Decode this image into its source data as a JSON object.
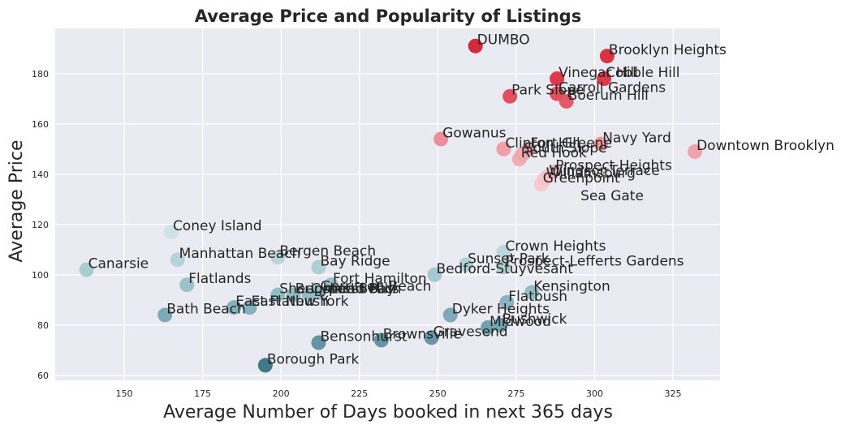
{
  "chart_data": {
    "type": "scatter",
    "title": "Average Price and Popularity of Listings",
    "xlabel": "Average Number of Days booked in next 365 days",
    "ylabel": "Average Price",
    "xlim": [
      128,
      340
    ],
    "ylim": [
      58,
      198
    ],
    "xticks": [
      150,
      175,
      200,
      225,
      250,
      275,
      300,
      325
    ],
    "yticks": [
      60,
      80,
      100,
      120,
      140,
      160,
      180
    ],
    "grid": true,
    "background": "#eaeaf2",
    "points": [
      {
        "label": "DUMBO",
        "x": 262,
        "y": 191,
        "color": "#d42a3e"
      },
      {
        "label": "Brooklyn Heights",
        "x": 304,
        "y": 187,
        "color": "#d83243"
      },
      {
        "label": "Vinegar Hill",
        "x": 288,
        "y": 178,
        "color": "#dc3a4b"
      },
      {
        "label": "Cobble Hill",
        "x": 303,
        "y": 178,
        "color": "#dc3a4b"
      },
      {
        "label": "Park Slope",
        "x": 273,
        "y": 171,
        "color": "#e1505f"
      },
      {
        "label": "Carroll Gardens",
        "x": 288,
        "y": 172,
        "color": "#e1505f"
      },
      {
        "label": "Boerum Hill",
        "x": 291,
        "y": 169,
        "color": "#e35a68"
      },
      {
        "label": "Gowanus",
        "x": 251,
        "y": 154,
        "color": "#ec8f98"
      },
      {
        "label": "Clinton Hill",
        "x": 271,
        "y": 150,
        "color": "#efa0a8"
      },
      {
        "label": "Fort Greene",
        "x": 279,
        "y": 150,
        "color": "#efa0a8"
      },
      {
        "label": "Navy Yard",
        "x": 302,
        "y": 152,
        "color": "#ee99a1"
      },
      {
        "label": "Downtown Brooklyn",
        "x": 332,
        "y": 149,
        "color": "#efa3aa"
      },
      {
        "label": "South Slope",
        "x": 277,
        "y": 148,
        "color": "#f0a7ae"
      },
      {
        "label": "Red Hook",
        "x": 276,
        "y": 146,
        "color": "#f1adb4"
      },
      {
        "label": "Prospect Heights",
        "x": 287,
        "y": 141,
        "color": "#f4bcc1"
      },
      {
        "label": "Windsor Terrace",
        "x": 285,
        "y": 139,
        "color": "#f4c2c7"
      },
      {
        "label": "Williamsburg",
        "x": 284,
        "y": 138,
        "color": "#f5c7cb"
      },
      {
        "label": "Greenpoint",
        "x": 283,
        "y": 136,
        "color": "#f6ccd0"
      },
      {
        "label": "Sea Gate",
        "x": 295,
        "y": 129,
        "color": "#ececec"
      },
      {
        "label": "Coney Island",
        "x": 165,
        "y": 117,
        "color": "#cfe2e5"
      },
      {
        "label": "Crown Heights",
        "x": 271,
        "y": 109,
        "color": "#bcd8dc"
      },
      {
        "label": "Manhattan Beach",
        "x": 167,
        "y": 106,
        "color": "#b5d3d8"
      },
      {
        "label": "Bergen Beach",
        "x": 199,
        "y": 107,
        "color": "#b8d5d9"
      },
      {
        "label": "Sunset Park",
        "x": 259,
        "y": 104,
        "color": "#b0d0d5"
      },
      {
        "label": "Bay Ridge",
        "x": 212,
        "y": 103,
        "color": "#aecfd4"
      },
      {
        "label": "Prospect-Lefferts Gardens",
        "x": 271,
        "y": 103,
        "color": "#aecfd4"
      },
      {
        "label": "Canarsie",
        "x": 138,
        "y": 102,
        "color": "#abcdd2"
      },
      {
        "label": "Bedford-Stuyvesant",
        "x": 249,
        "y": 100,
        "color": "#a6c9cf"
      },
      {
        "label": "Fort Hamilton",
        "x": 216,
        "y": 96,
        "color": "#9cc2c9"
      },
      {
        "label": "Flatlands",
        "x": 170,
        "y": 96,
        "color": "#9cc2c9"
      },
      {
        "label": "Kensington",
        "x": 280,
        "y": 93,
        "color": "#95bdc5"
      },
      {
        "label": "Sheepshead Bay",
        "x": 199,
        "y": 92,
        "color": "#93bbc3"
      },
      {
        "label": "Cypress Hills",
        "x": 209,
        "y": 92,
        "color": "#93bbc3"
      },
      {
        "label": "Brighton Beach",
        "x": 204,
        "y": 92,
        "color": "#93bbc3"
      },
      {
        "label": "Gerritsen Beach",
        "x": 212,
        "y": 93,
        "color": "#95bdc5"
      },
      {
        "label": "Flatbush",
        "x": 272,
        "y": 89,
        "color": "#8bb5be"
      },
      {
        "label": "East Flatbush",
        "x": 185,
        "y": 87,
        "color": "#86b1bb"
      },
      {
        "label": "East New York",
        "x": 190,
        "y": 87,
        "color": "#86b1bb"
      },
      {
        "label": "Bath Beach",
        "x": 163,
        "y": 84,
        "color": "#7faab5"
      },
      {
        "label": "Dyker Heights",
        "x": 254,
        "y": 84,
        "color": "#7faab5"
      },
      {
        "label": "Bushwick",
        "x": 270,
        "y": 80,
        "color": "#75a2ae"
      },
      {
        "label": "Midwood",
        "x": 266,
        "y": 79,
        "color": "#72a0ac"
      },
      {
        "label": "Gravesend",
        "x": 248,
        "y": 75,
        "color": "#6898a5"
      },
      {
        "label": "Brownsville",
        "x": 232,
        "y": 74,
        "color": "#6596a3"
      },
      {
        "label": "Bensonhurst",
        "x": 212,
        "y": 73,
        "color": "#63949f"
      },
      {
        "label": "Borough Park",
        "x": 195,
        "y": 64,
        "color": "#3f7a8b"
      }
    ]
  }
}
